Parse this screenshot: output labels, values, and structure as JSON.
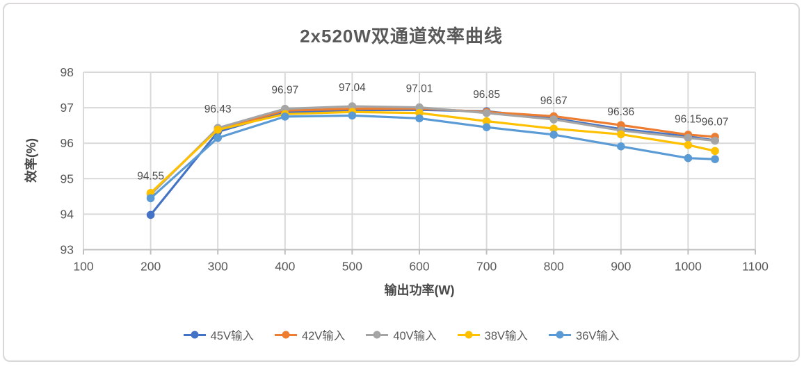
{
  "chart_data": {
    "type": "line",
    "title": "2x520W双通道效率曲线",
    "xlabel": "输出功率(W)",
    "ylabel": "效率(%)",
    "x": [
      200,
      300,
      400,
      500,
      600,
      700,
      800,
      900,
      1000,
      1040
    ],
    "xlim": [
      100,
      1100
    ],
    "ylim": [
      93,
      98
    ],
    "x_ticks": [
      100,
      200,
      300,
      400,
      500,
      600,
      700,
      800,
      900,
      1000,
      1100
    ],
    "y_ticks": [
      93,
      94,
      95,
      96,
      97,
      98
    ],
    "grid": true,
    "legend_position": "bottom",
    "colors": {
      "grid": "#D9D9D9",
      "axis": "#BFBFBF",
      "title_text": "#595959",
      "tick_text": "#595959",
      "data_label_text": "#4C4C4C"
    },
    "series": [
      {
        "name": "45V输入",
        "color": "#4472C4",
        "values": [
          93.98,
          96.32,
          96.88,
          96.93,
          96.94,
          96.9,
          96.7,
          96.4,
          96.19,
          96.08
        ]
      },
      {
        "name": "42V输入",
        "color": "#ED7D31",
        "values": [
          94.57,
          96.4,
          96.92,
          96.97,
          96.98,
          96.88,
          96.76,
          96.51,
          96.24,
          96.18
        ]
      },
      {
        "name": "40V输入",
        "color": "#A5A5A5",
        "values": [
          94.55,
          96.43,
          96.97,
          97.04,
          97.01,
          96.85,
          96.67,
          96.36,
          96.15,
          96.07
        ],
        "data_labels": [
          "94.55",
          "96.43",
          "96.97",
          "97.04",
          "97.01",
          "96.85",
          "96.67",
          "96.36",
          "96.15",
          "96.07"
        ]
      },
      {
        "name": "38V输入",
        "color": "#FFC000",
        "values": [
          94.6,
          96.38,
          96.82,
          96.88,
          96.85,
          96.62,
          96.41,
          96.25,
          95.95,
          95.78
        ]
      },
      {
        "name": "36V输入",
        "color": "#5B9BD5",
        "values": [
          94.45,
          96.15,
          96.75,
          96.78,
          96.7,
          96.45,
          96.24,
          95.91,
          95.58,
          95.55
        ]
      }
    ]
  }
}
